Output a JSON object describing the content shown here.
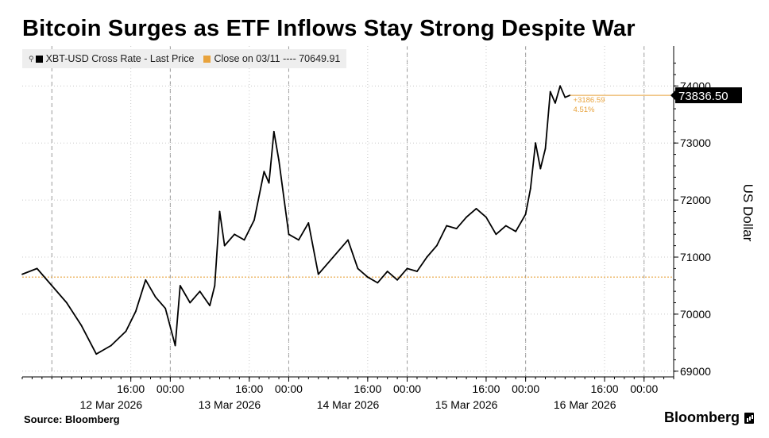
{
  "header": {
    "title": "Bitcoin Surges as ETF Inflows Stay Strong Despite War"
  },
  "legend": {
    "series_label": "XBT-USD Cross Rate - Last Price",
    "reference_label": "Close on 03/11 ---- 70649.91"
  },
  "footer": {
    "source": "Source: Bloomberg",
    "brand": "Bloomberg"
  },
  "colors": {
    "series": "#000000",
    "reference": "#e8a33d",
    "grid": "#c8c8c8"
  },
  "chart_data": {
    "type": "line",
    "title": "Bitcoin Surges as ETF Inflows Stay Strong Despite War",
    "ylabel": "US Dollar",
    "ylim": [
      68900,
      74700
    ],
    "y_ticks": [
      69000,
      70000,
      71000,
      72000,
      73000,
      74000
    ],
    "y_tick_labels": [
      "69000",
      "70000",
      "71000",
      "72000",
      "73000",
      "74000"
    ],
    "x_range": [
      "2026-03-11T18:00",
      "2026-03-17T06:00"
    ],
    "x_ticks": [
      {
        "time": "2026-03-12T16:00",
        "label": "16:00"
      },
      {
        "time": "2026-03-13T00:00",
        "label": "00:00"
      },
      {
        "time": "2026-03-13T16:00",
        "label": "16:00"
      },
      {
        "time": "2026-03-14T00:00",
        "label": "00:00"
      },
      {
        "time": "2026-03-14T16:00",
        "label": "16:00"
      },
      {
        "time": "2026-03-15T00:00",
        "label": "00:00"
      },
      {
        "time": "2026-03-15T16:00",
        "label": "16:00"
      },
      {
        "time": "2026-03-16T00:00",
        "label": "00:00"
      },
      {
        "time": "2026-03-16T16:00",
        "label": "16:00"
      },
      {
        "time": "2026-03-17T00:00",
        "label": "00:00"
      }
    ],
    "date_labels": [
      {
        "time": "2026-03-12T12:00",
        "label": "12 Mar 2026"
      },
      {
        "time": "2026-03-13T12:00",
        "label": "13 Mar 2026"
      },
      {
        "time": "2026-03-14T12:00",
        "label": "14 Mar 2026"
      },
      {
        "time": "2026-03-15T12:00",
        "label": "15 Mar 2026"
      },
      {
        "time": "2026-03-16T12:00",
        "label": "16 Mar 2026"
      }
    ],
    "day_boundaries": [
      "2026-03-12T00:00",
      "2026-03-13T00:00",
      "2026-03-14T00:00",
      "2026-03-15T00:00",
      "2026-03-16T00:00",
      "2026-03-17T00:00"
    ],
    "grid": true,
    "series": [
      {
        "name": "XBT-USD Cross Rate - Last Price",
        "x": [
          "2026-03-11T18:00",
          "2026-03-11T21:00",
          "2026-03-12T00:00",
          "2026-03-12T03:00",
          "2026-03-12T06:00",
          "2026-03-12T09:00",
          "2026-03-12T12:00",
          "2026-03-12T15:00",
          "2026-03-12T17:00",
          "2026-03-12T19:00",
          "2026-03-12T21:00",
          "2026-03-12T23:00",
          "2026-03-13T01:00",
          "2026-03-13T02:00",
          "2026-03-13T04:00",
          "2026-03-13T06:00",
          "2026-03-13T08:00",
          "2026-03-13T09:00",
          "2026-03-13T10:00",
          "2026-03-13T11:00",
          "2026-03-13T13:00",
          "2026-03-13T15:00",
          "2026-03-13T17:00",
          "2026-03-13T19:00",
          "2026-03-13T20:00",
          "2026-03-13T21:00",
          "2026-03-13T22:00",
          "2026-03-14T00:00",
          "2026-03-14T02:00",
          "2026-03-14T04:00",
          "2026-03-14T06:00",
          "2026-03-14T08:00",
          "2026-03-14T10:00",
          "2026-03-14T12:00",
          "2026-03-14T14:00",
          "2026-03-14T16:00",
          "2026-03-14T18:00",
          "2026-03-14T20:00",
          "2026-03-14T22:00",
          "2026-03-15T00:00",
          "2026-03-15T02:00",
          "2026-03-15T04:00",
          "2026-03-15T06:00",
          "2026-03-15T08:00",
          "2026-03-15T10:00",
          "2026-03-15T12:00",
          "2026-03-15T14:00",
          "2026-03-15T16:00",
          "2026-03-15T18:00",
          "2026-03-15T20:00",
          "2026-03-15T22:00",
          "2026-03-16T00:00",
          "2026-03-16T01:00",
          "2026-03-16T02:00",
          "2026-03-16T03:00",
          "2026-03-16T04:00",
          "2026-03-16T05:00",
          "2026-03-16T06:00",
          "2026-03-16T07:00",
          "2026-03-16T08:00",
          "2026-03-16T09:00"
        ],
        "y": [
          70700,
          70800,
          70500,
          70200,
          69800,
          69300,
          69450,
          69700,
          70050,
          70600,
          70300,
          70100,
          69450,
          70500,
          70200,
          70400,
          70150,
          70500,
          71800,
          71200,
          71400,
          71300,
          71650,
          72500,
          72300,
          73200,
          72700,
          71400,
          71300,
          71600,
          70700,
          70900,
          71100,
          71300,
          70800,
          70650,
          70550,
          70750,
          70600,
          70800,
          70750,
          71000,
          71200,
          71550,
          71500,
          71700,
          71850,
          71700,
          71400,
          71550,
          71450,
          71750,
          72200,
          73000,
          72550,
          72900,
          73900,
          73700,
          74000,
          73800,
          73836.5
        ]
      }
    ],
    "reference_line": {
      "label": "Close on 03/11",
      "value": 70649.91
    },
    "last_value_label": "73836.50",
    "change_label": "+3186.59",
    "change_pct_label": "4.51%"
  }
}
